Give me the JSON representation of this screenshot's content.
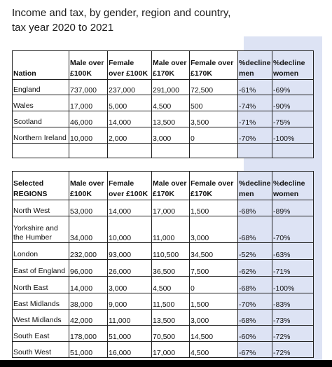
{
  "title_line1": "Income and tax, by gender, region and country,",
  "title_line2": "tax year 2020 to 2021",
  "colors": {
    "highlight": "#dde3f4",
    "border": "#222222"
  },
  "nation_table": {
    "headers": [
      "Nation",
      "Male over £100K",
      "Female over £100K",
      "Male over £170K",
      "Female over £170K",
      "%decline men",
      "%decline women"
    ],
    "rows": [
      [
        "England",
        "737,000",
        "237,000",
        "291,000",
        "72,500",
        "-61%",
        "-69%"
      ],
      [
        "Wales",
        "17,000",
        "5,000",
        "4,500",
        "500",
        "-74%",
        "-90%"
      ],
      [
        "Scotland",
        "46,000",
        "14,000",
        "13,500",
        "3,500",
        "-71%",
        "-75%"
      ],
      [
        "Northern Ireland",
        "10,000",
        "2,000",
        "3,000",
        "0",
        "-70%",
        "-100%"
      ]
    ]
  },
  "region_table": {
    "headers": [
      "Selected REGIONS",
      "Male over £100K",
      "Female over £100K",
      "Male over £170K",
      "Female over £170K",
      "%decline men",
      "%decline women"
    ],
    "rows": [
      [
        "North West",
        "53,000",
        "14,000",
        "17,000",
        "1,500",
        "-68%",
        "-89%"
      ],
      [
        "Yorkshire and the Humber",
        "34,000",
        "10,000",
        "11,000",
        "3,000",
        "-68%",
        "-70%"
      ],
      [
        "London",
        "232,000",
        "93,000",
        "110,500",
        "34,500",
        "-52%",
        "-63%"
      ],
      [
        "East of England",
        "96,000",
        "26,000",
        "36,500",
        "7,500",
        "-62%",
        "-71%"
      ],
      [
        "North East",
        "14,000",
        "3,000",
        "4,500",
        "0",
        "-68%",
        "-100%"
      ],
      [
        "East Midlands",
        "38,000",
        "9,000",
        "11,500",
        "1,500",
        "-70%",
        "-83%"
      ],
      [
        "West Midlands",
        "42,000",
        "11,000",
        "13,500",
        "3,000",
        "-68%",
        "-73%"
      ],
      [
        "South East",
        "178,000",
        "51,000",
        "70,500",
        "14,500",
        "-60%",
        "-72%"
      ],
      [
        "South West",
        "51,000",
        "16,000",
        "17,000",
        "4,500",
        "-67%",
        "-72%"
      ]
    ]
  }
}
